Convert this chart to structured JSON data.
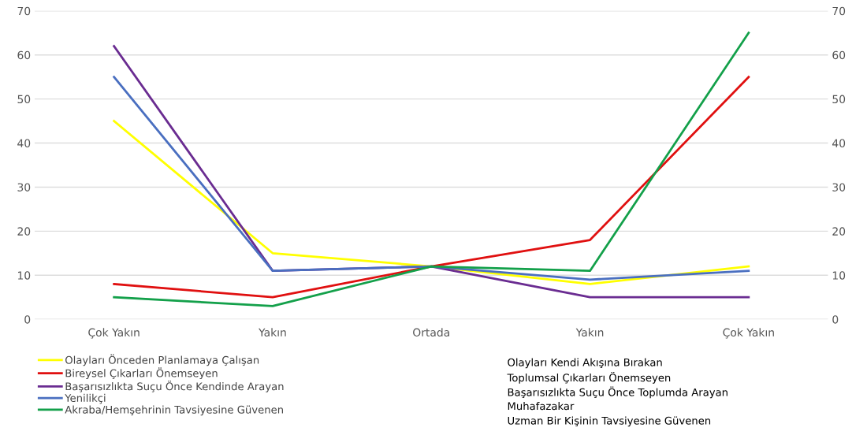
{
  "chart_data": {
    "type": "line",
    "categories": [
      "Çok Yakın",
      "Yakın",
      "Ortada",
      "Yakın",
      "Çok Yakın"
    ],
    "series": [
      {
        "name": "Olayları Önceden Planlamaya Çalışan",
        "color": "#ffff00",
        "values": [
          45,
          15,
          12,
          8,
          12
        ]
      },
      {
        "name": "Bireysel Çıkarları Önemseyen",
        "color": "#e01010",
        "values": [
          8,
          5,
          12,
          18,
          55
        ]
      },
      {
        "name": "Başarısızlıkta Suçu Önce Kendinde Arayan",
        "color": "#6a2c91",
        "values": [
          62,
          11,
          12,
          5,
          5
        ]
      },
      {
        "name": "Yenilikçi",
        "color": "#4a6fc0",
        "values": [
          55,
          11,
          12,
          9,
          11
        ]
      },
      {
        "name": "Akraba/Hemşehrinin Tavsiyesine Güvenen",
        "color": "#13a04a",
        "values": [
          5,
          3,
          12,
          11,
          65
        ]
      }
    ],
    "ylim": [
      0,
      70
    ],
    "yticks": [
      0,
      10,
      20,
      30,
      40,
      50,
      60,
      70
    ],
    "y2lim": [
      0,
      70
    ],
    "y2ticks": [
      0,
      10,
      20,
      30,
      40,
      50,
      60,
      70
    ],
    "grid": "y",
    "legend": "bottom left",
    "marker": "none",
    "line_style": "solid",
    "annotations": [
      "Olayları Kendi Akışına Bırakan",
      "Toplumsal Çıkarları Önemseyen",
      "Başarısızlıkta Suçu Önce Toplumda Arayan",
      "Muhafazakar",
      "Uzman Bir Kişinin Tavsiyesine Güvenen"
    ]
  }
}
